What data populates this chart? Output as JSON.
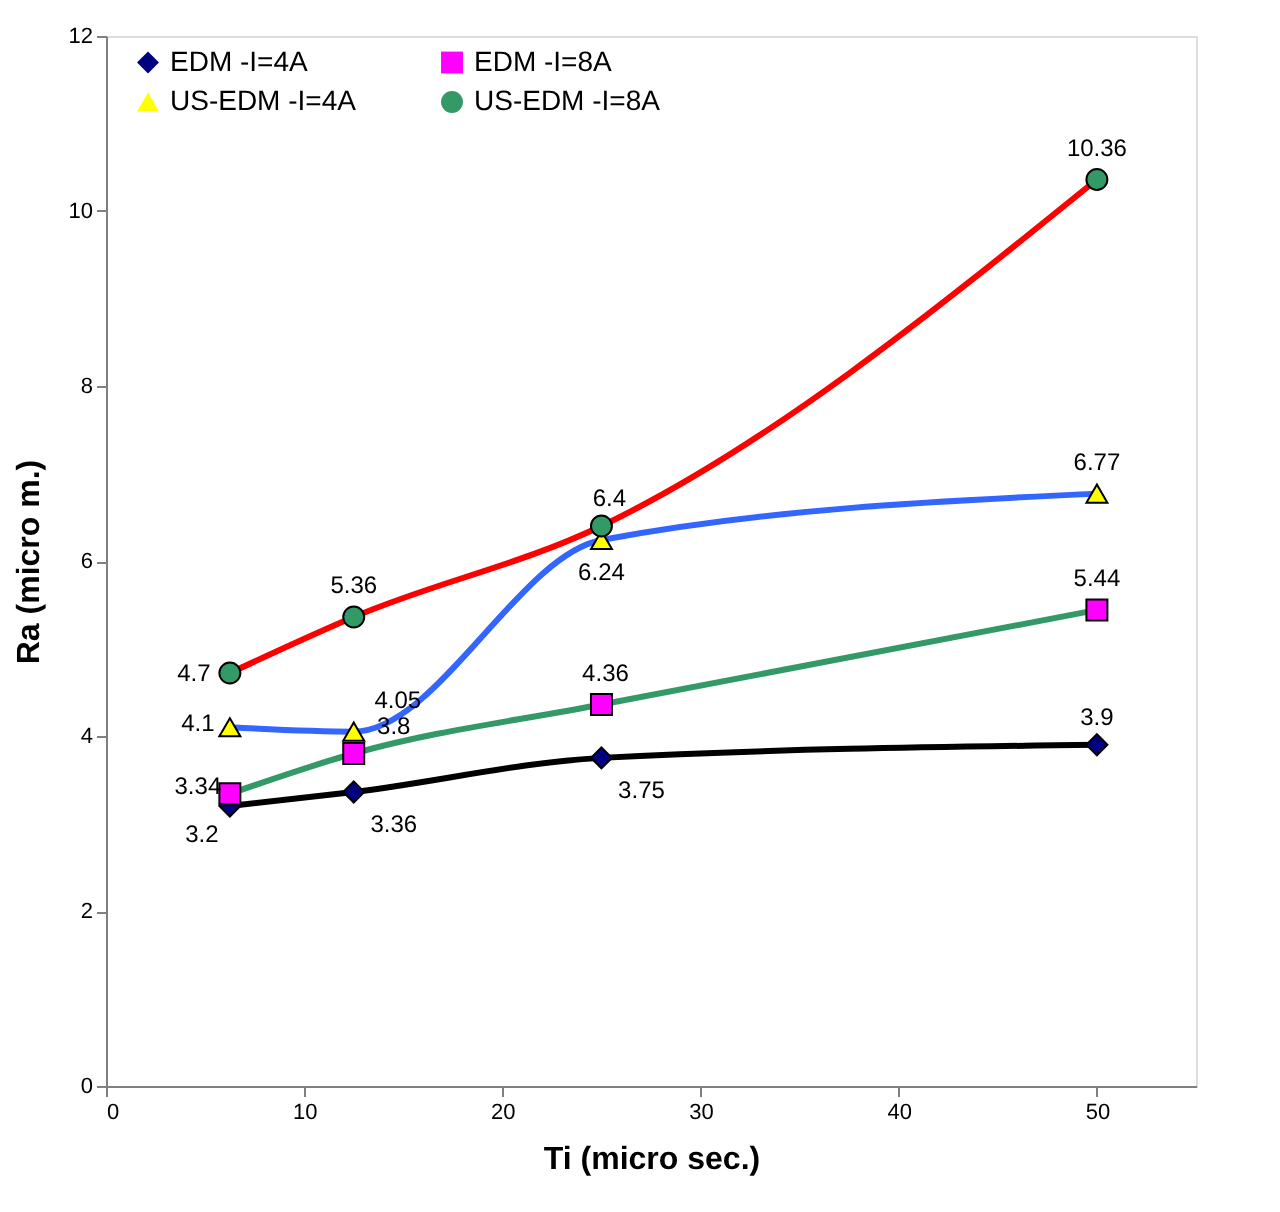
{
  "chart_data": {
    "type": "line",
    "xlabel": "Ti (micro sec.)",
    "ylabel": "Ra (micro m.)",
    "x": [
      6.25,
      12.5,
      25,
      50
    ],
    "series": [
      {
        "name": "EDM -I=4A",
        "color": "#000000",
        "marker": "diamond",
        "colors": [
          "#000080",
          "#000080",
          "#000080",
          "#000080"
        ],
        "values": [
          3.2,
          3.36,
          3.75,
          3.9
        ],
        "value_labels": [
          "3.2",
          "3.36",
          "3.75",
          "3.9"
        ]
      },
      {
        "name": "EDM -I=8A",
        "color": "#339966",
        "marker": "square",
        "colors": [
          "#ff00ff",
          "#ff00ff",
          "#ff00ff",
          "#ff00ff"
        ],
        "values": [
          3.34,
          3.8,
          4.36,
          5.44
        ],
        "value_labels": [
          "3.34",
          "3.8",
          "4.36",
          "5.44"
        ]
      },
      {
        "name": "US-EDM -I=4A",
        "color": "#3366ff",
        "marker": "triangle",
        "colors": [
          "#ffff00",
          "#ffff00",
          "#ffff00",
          "#ffff00"
        ],
        "values": [
          4.1,
          4.05,
          6.24,
          6.77
        ],
        "value_labels": [
          "4.1",
          "4.05",
          "6.24",
          "6.77"
        ]
      },
      {
        "name": "US-EDM -I=8A",
        "color": "#ff0000",
        "marker": "circle",
        "colors": [
          "#339966",
          "#339966",
          "#339966",
          "#339966"
        ],
        "values": [
          4.72,
          5.36,
          6.4,
          10.36
        ],
        "value_labels": [
          "4.7",
          "5.36",
          "6.4",
          "10.36"
        ]
      }
    ],
    "xlim": [
      0,
      55
    ],
    "xticks": [
      0,
      10,
      20,
      30,
      40,
      50
    ],
    "ylim": [
      0,
      12
    ],
    "yticks": [
      0,
      2,
      4,
      6,
      8,
      10,
      12
    ],
    "grid": false,
    "legend": "top left"
  }
}
